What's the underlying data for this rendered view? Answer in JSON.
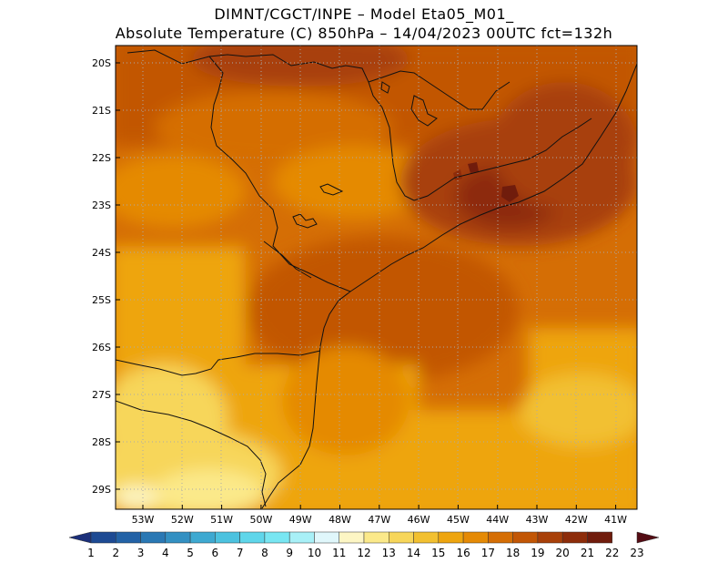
{
  "header": {
    "line1": "DIMNT/CGCT/INPE –  Model Eta05_M01_",
    "line2": "Absolute Temperature (C) 850hPa –  14/04/2023 00UTC fct=132h"
  },
  "map": {
    "lat_labels": [
      "20S",
      "21S",
      "22S",
      "23S",
      "24S",
      "25S",
      "26S",
      "27S",
      "28S",
      "29S"
    ],
    "lon_labels": [
      "53W",
      "52W",
      "51W",
      "50W",
      "49W",
      "48W",
      "47W",
      "46W",
      "45W",
      "44W",
      "43W",
      "42W",
      "41W"
    ],
    "grid": "dotted"
  },
  "colorbar": {
    "labels": [
      "1",
      "2",
      "3",
      "4",
      "5",
      "6",
      "7",
      "8",
      "9",
      "10",
      "11",
      "12",
      "13",
      "14",
      "15",
      "16",
      "17",
      "18",
      "19",
      "20",
      "21",
      "22",
      "23"
    ],
    "colors": [
      "#1b2f7a",
      "#1d4a93",
      "#2362a6",
      "#2a78b4",
      "#3390c2",
      "#3ea9d1",
      "#4cc2df",
      "#5fd6ea",
      "#78e6f2",
      "#a8f0f7",
      "#e0f7fb",
      "#fdf6c4",
      "#fbe98a",
      "#f7d65a",
      "#f2c030",
      "#eea50f",
      "#e58a05",
      "#d56e05",
      "#c25605",
      "#a84009",
      "#8d2c0a",
      "#701c0c",
      "#540c14"
    ]
  }
}
